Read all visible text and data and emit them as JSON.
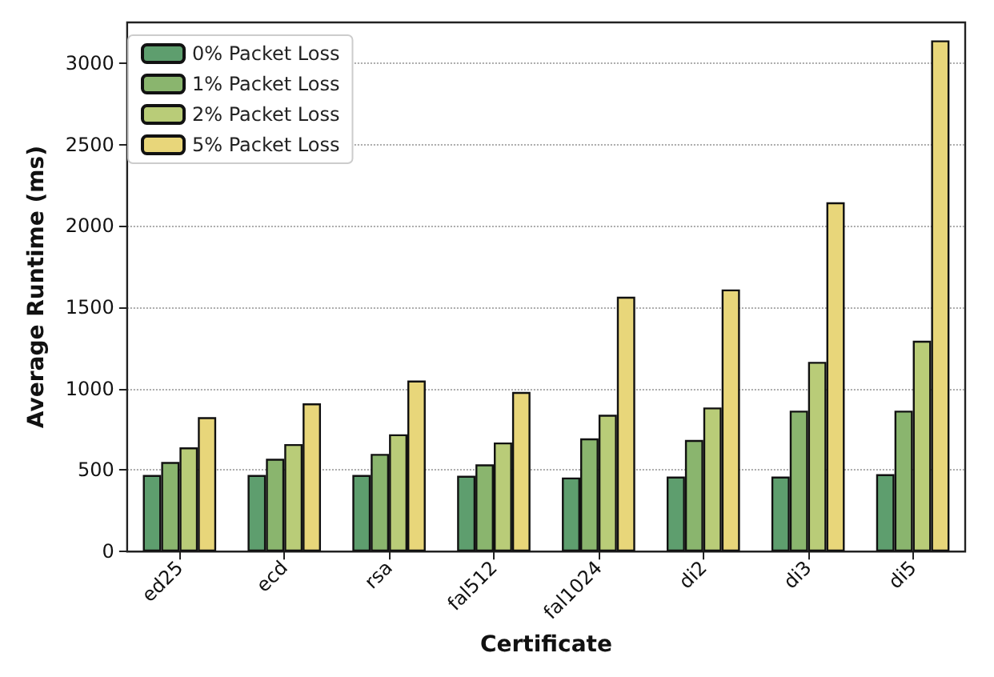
{
  "chart_data": {
    "type": "bar",
    "xlabel": "Certificate",
    "ylabel": "Average Runtime (ms)",
    "categories": [
      "ed25",
      "ecd",
      "rsa",
      "fal512",
      "fal1024",
      "di2",
      "di3",
      "di5"
    ],
    "series": [
      {
        "name": "0% Packet Loss",
        "color": "#5e9e6e",
        "values": [
          470,
          470,
          470,
          465,
          455,
          460,
          460,
          475
        ]
      },
      {
        "name": "1% Packet Loss",
        "color": "#8ab56e",
        "values": [
          550,
          570,
          600,
          535,
          695,
          685,
          865,
          865
        ]
      },
      {
        "name": "2% Packet Loss",
        "color": "#b9cc78",
        "values": [
          640,
          660,
          720,
          670,
          840,
          885,
          1165,
          1295
        ]
      },
      {
        "name": "5% Packet Loss",
        "color": "#e8d67a",
        "values": [
          825,
          910,
          1050,
          980,
          1565,
          1610,
          2145,
          3140
        ]
      }
    ],
    "ylim": [
      0,
      3250
    ],
    "yticks": [
      0,
      500,
      1000,
      1500,
      2000,
      2500,
      3000
    ],
    "grid": "y",
    "legend": "top left"
  }
}
